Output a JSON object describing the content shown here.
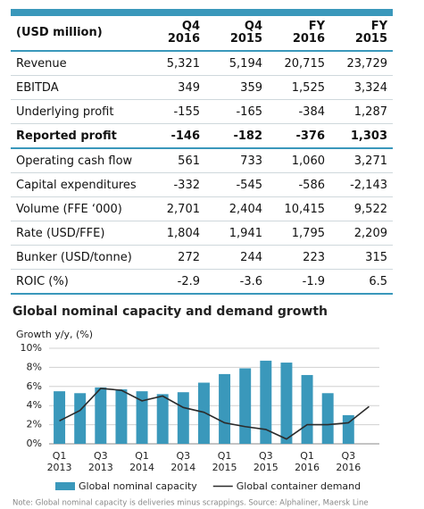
{
  "table": {
    "header": [
      "(USD million)",
      "Q4 2016",
      "Q4 2015",
      "FY 2016",
      "FY 2015"
    ],
    "rows": [
      [
        "Revenue",
        "5,321",
        "5,194",
        "20,715",
        "23,729"
      ],
      [
        "EBITDA",
        "349",
        "359",
        "1,525",
        "3,324"
      ],
      [
        "Underlying profit",
        "-155",
        "-165",
        "-384",
        "1,287"
      ],
      [
        "Reported profit",
        "-146",
        "-182",
        "-376",
        "1,303"
      ],
      [
        "Operating cash flow",
        "561",
        "733",
        "1,060",
        "3,271"
      ],
      [
        "Capital expenditures",
        "-332",
        "-545",
        "-586",
        "-2,143"
      ],
      [
        "Volume (FFE ‘000)",
        "2,701",
        "2,404",
        "10,415",
        "9,522"
      ],
      [
        "Rate (USD/FFE)",
        "1,804",
        "1,941",
        "1,795",
        "2,209"
      ],
      [
        "Bunker (USD/tonne)",
        "272",
        "244",
        "223",
        "315"
      ],
      [
        "ROIC (%)",
        "-2.9",
        "-3.6",
        "-1.9",
        "6.5"
      ]
    ]
  },
  "chart_data": {
    "type": "bar",
    "title": "Global nominal capacity and demand growth",
    "y_label": "Growth y/y, (%)",
    "categories": [
      "Q1 2013",
      null,
      "Q3 2013",
      null,
      "Q1 2014",
      null,
      "Q3 2014",
      null,
      "Q1 2015",
      null,
      "Q3 2015",
      null,
      "Q1 2016",
      null,
      "Q3 2016",
      null
    ],
    "series": [
      {
        "name": "Global nominal capacity",
        "type": "bar",
        "color": "#3a98bb",
        "values": [
          5.5,
          5.3,
          5.9,
          5.7,
          5.5,
          5.2,
          5.4,
          6.4,
          7.3,
          7.9,
          8.7,
          8.5,
          7.2,
          5.3,
          3.0,
          null
        ]
      },
      {
        "name": "Global container demand",
        "type": "line",
        "color": "#2b2b2b",
        "values": [
          2.4,
          3.5,
          5.8,
          5.6,
          4.5,
          5.0,
          3.8,
          3.3,
          2.2,
          1.8,
          1.5,
          0.5,
          2.0,
          2.0,
          2.2,
          3.9
        ]
      }
    ],
    "ylim": [
      0,
      10
    ],
    "yticks": [
      {
        "value": 0,
        "label": "0%"
      },
      {
        "value": 2,
        "label": "2%"
      },
      {
        "value": 4,
        "label": "4%"
      },
      {
        "value": 6,
        "label": "6%"
      },
      {
        "value": 8,
        "label": "8%"
      },
      {
        "value": 10,
        "label": "10%"
      }
    ],
    "grid": true,
    "note": "Note: Global nominal capacity is deliveries minus scrappings. Source: Alphaliner, Maersk Line"
  }
}
